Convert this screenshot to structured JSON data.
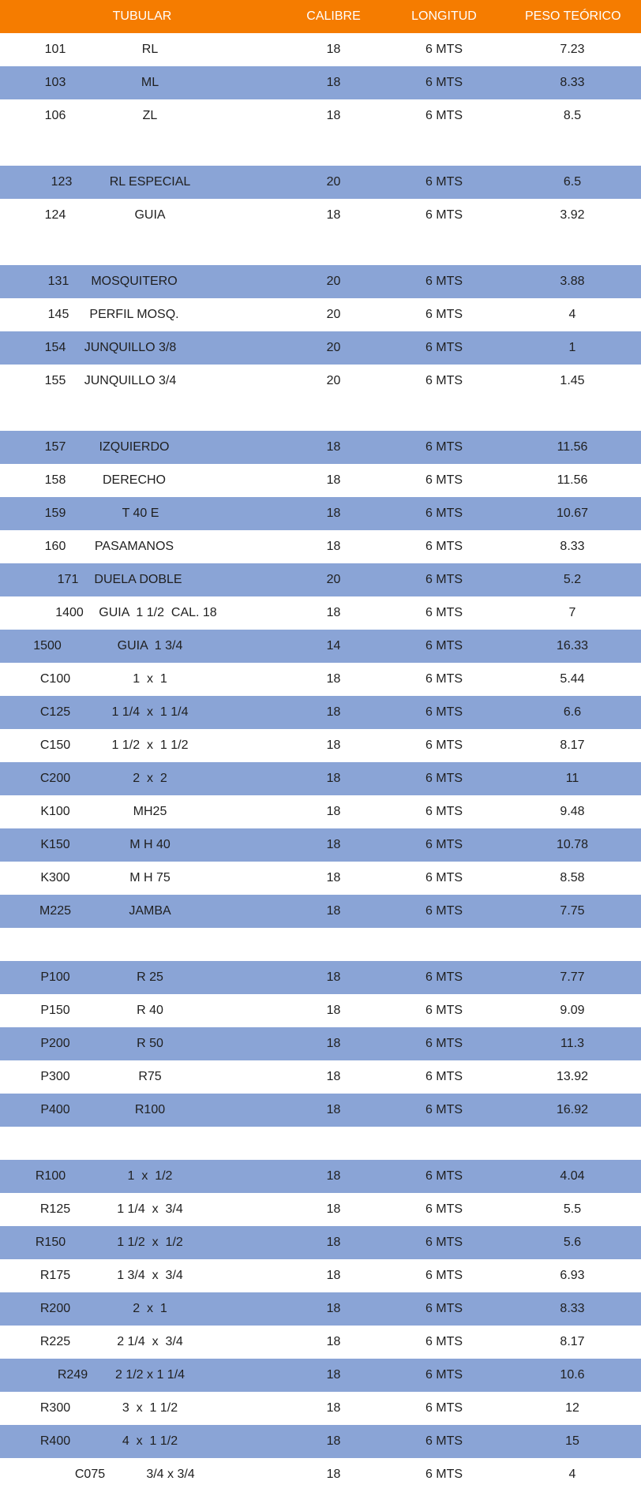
{
  "header": {
    "tubular": "TUBULAR",
    "calibre": "CALIBRE",
    "longitud": "LONGITUD",
    "peso": "PESO TEÓRICO"
  },
  "rows": [
    {
      "code": "101",
      "desc": "RL",
      "cal": "18",
      "len": "6 MTS",
      "peso": "7.23",
      "bg": "white"
    },
    {
      "code": "103",
      "desc": "ML",
      "cal": "18",
      "len": "6 MTS",
      "peso": "8.33",
      "bg": "blue"
    },
    {
      "code": "106",
      "desc": "ZL",
      "cal": "18",
      "len": "6 MTS",
      "peso": "8.5",
      "bg": "white"
    },
    {
      "blank": true
    },
    {
      "code": "123",
      "desc": "RL ESPECIAL",
      "cal": "20",
      "len": "6 MTS",
      "peso": "6.5",
      "bg": "blue"
    },
    {
      "code": "124",
      "desc": "GUIA",
      "cal": "18",
      "len": "6 MTS",
      "peso": "3.92",
      "bg": "white"
    },
    {
      "blank": true
    },
    {
      "code": "131",
      "desc": "MOSQUITERO",
      "cal": "20",
      "len": "6 MTS",
      "peso": "3.88",
      "bg": "blue"
    },
    {
      "code": "145",
      "desc": "PERFIL MOSQ.",
      "cal": "20",
      "len": "6 MTS",
      "peso": "4",
      "bg": "white"
    },
    {
      "code": "154",
      "desc": "JUNQUILLO 3/8",
      "cal": "20",
      "len": "6 MTS",
      "peso": "1",
      "bg": "blue"
    },
    {
      "code": "155",
      "desc": "JUNQUILLO 3/4",
      "cal": "20",
      "len": "6 MTS",
      "peso": "1.45",
      "bg": "white"
    },
    {
      "blank": true
    },
    {
      "code": "157",
      "desc": "IZQUIERDO",
      "cal": "18",
      "len": "6 MTS",
      "peso": "11.56",
      "bg": "blue"
    },
    {
      "code": "158",
      "desc": "DERECHO",
      "cal": "18",
      "len": "6 MTS",
      "peso": "11.56",
      "bg": "white"
    },
    {
      "code": "159",
      "desc": "T 40 E",
      "cal": "18",
      "len": "6 MTS",
      "peso": "10.67",
      "bg": "blue"
    },
    {
      "code": "160",
      "desc": "PASAMANOS",
      "cal": "18",
      "len": "6 MTS",
      "peso": "8.33",
      "bg": "white"
    },
    {
      "code": "171",
      "desc": "DUELA DOBLE",
      "cal": "20",
      "len": "6 MTS",
      "peso": "5.2",
      "bg": "blue"
    },
    {
      "code": "1400",
      "desc": "GUIA  1 1/2  CAL. 18",
      "cal": "18",
      "len": "6 MTS",
      "peso": "7",
      "bg": "white"
    },
    {
      "code": "1500",
      "desc": "GUIA  1 3/4",
      "cal": "14",
      "len": "6 MTS",
      "peso": "16.33",
      "bg": "blue"
    },
    {
      "code": "C100",
      "desc": "1  x  1",
      "cal": "18",
      "len": "6 MTS",
      "peso": "5.44",
      "bg": "white"
    },
    {
      "code": "C125",
      "desc": "1 1/4  x  1 1/4",
      "cal": "18",
      "len": "6 MTS",
      "peso": "6.6",
      "bg": "blue"
    },
    {
      "code": "C150",
      "desc": "1 1/2  x  1 1/2",
      "cal": "18",
      "len": "6 MTS",
      "peso": "8.17",
      "bg": "white"
    },
    {
      "code": "C200",
      "desc": "2  x  2",
      "cal": "18",
      "len": "6 MTS",
      "peso": "11",
      "bg": "blue"
    },
    {
      "code": "K100",
      "desc": "MH25",
      "cal": "18",
      "len": "6 MTS",
      "peso": "9.48",
      "bg": "white"
    },
    {
      "code": "K150",
      "desc": "M H 40",
      "cal": "18",
      "len": "6 MTS",
      "peso": "10.78",
      "bg": "blue"
    },
    {
      "code": "K300",
      "desc": "M H 75",
      "cal": "18",
      "len": "6 MTS",
      "peso": "8.58",
      "bg": "white"
    },
    {
      "code": "M225",
      "desc": "JAMBA",
      "cal": "18",
      "len": "6 MTS",
      "peso": "7.75",
      "bg": "blue"
    },
    {
      "blank": true
    },
    {
      "code": "P100",
      "desc": "R 25",
      "cal": "18",
      "len": "6 MTS",
      "peso": "7.77",
      "bg": "blue"
    },
    {
      "code": "P150",
      "desc": "R 40",
      "cal": "18",
      "len": "6 MTS",
      "peso": "9.09",
      "bg": "white"
    },
    {
      "code": "P200",
      "desc": "R 50",
      "cal": "18",
      "len": "6 MTS",
      "peso": "11.3",
      "bg": "blue"
    },
    {
      "code": "P300",
      "desc": "R75",
      "cal": "18",
      "len": "6 MTS",
      "peso": "13.92",
      "bg": "white"
    },
    {
      "code": "P400",
      "desc": "R100",
      "cal": "18",
      "len": "6 MTS",
      "peso": "16.92",
      "bg": "blue"
    },
    {
      "blank": true
    },
    {
      "code": "R100",
      "desc": "1  x  1/2",
      "cal": "18",
      "len": "6 MTS",
      "peso": "4.04",
      "bg": "blue"
    },
    {
      "code": "R125",
      "desc": "1 1/4  x  3/4",
      "cal": "18",
      "len": "6 MTS",
      "peso": "5.5",
      "bg": "white"
    },
    {
      "code": "R150",
      "desc": "1 1/2  x  1/2",
      "cal": "18",
      "len": "6 MTS",
      "peso": "5.6",
      "bg": "blue"
    },
    {
      "code": "R175",
      "desc": "1 3/4  x  3/4",
      "cal": "18",
      "len": "6 MTS",
      "peso": "6.93",
      "bg": "white"
    },
    {
      "code": "R200",
      "desc": "2  x  1",
      "cal": "18",
      "len": "6 MTS",
      "peso": "8.33",
      "bg": "blue"
    },
    {
      "code": "R225",
      "desc": "2 1/4  x  3/4",
      "cal": "18",
      "len": "6 MTS",
      "peso": "8.17",
      "bg": "white"
    },
    {
      "code": "R249",
      "desc": "2 1/2 x 1 1/4",
      "cal": "18",
      "len": "6 MTS",
      "peso": "10.6",
      "bg": "blue"
    },
    {
      "code": "R300",
      "desc": "3  x  1 1/2",
      "cal": "18",
      "len": "6 MTS",
      "peso": "12",
      "bg": "white"
    },
    {
      "code": "R400",
      "desc": "4  x  1 1/2",
      "cal": "18",
      "len": "6 MTS",
      "peso": "15",
      "bg": "blue"
    },
    {
      "code": "C075",
      "desc": "3/4 x 3/4",
      "cal": "18",
      "len": "6 MTS",
      "peso": "4",
      "bg": "white"
    }
  ]
}
